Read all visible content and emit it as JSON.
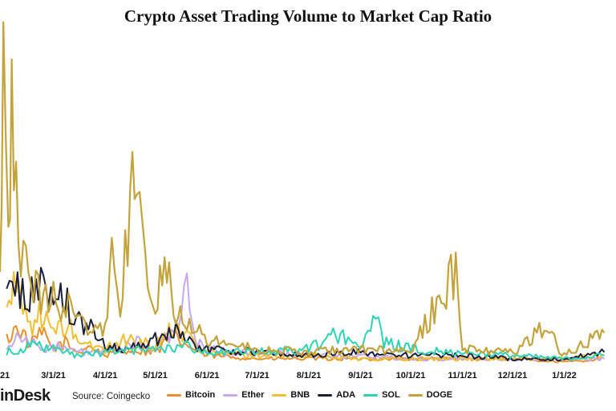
{
  "title": "Crypto Asset Trading Volume to Market Cap Ratio",
  "footer": {
    "logo": "inDesk",
    "source": "Source: Coingecko"
  },
  "chart_data": {
    "type": "line",
    "title": "Crypto Asset Trading Volume to Market Cap Ratio",
    "xlabel": "",
    "ylabel": "",
    "x_ticks": [
      "21",
      "3/1/21",
      "4/1/21",
      "5/1/21",
      "6/1/21",
      "7/1/21",
      "8/1/21",
      "9/1/21",
      "10/1/21",
      "11/1/21",
      "12/1/21",
      "1/1/22"
    ],
    "ylim": [
      0,
      1.0
    ],
    "grid": false,
    "legend_position": "bottom",
    "series": [
      {
        "name": "Bitcoin",
        "color": "#e8902a",
        "points": [
          [
            "2021-02-01",
            0.08
          ],
          [
            "2021-02-08",
            0.12
          ],
          [
            "2021-02-15",
            0.06
          ],
          [
            "2021-02-22",
            0.1
          ],
          [
            "2021-03-01",
            0.05
          ],
          [
            "2021-03-08",
            0.07
          ],
          [
            "2021-03-15",
            0.04
          ],
          [
            "2021-03-22",
            0.06
          ],
          [
            "2021-04-01",
            0.03
          ],
          [
            "2021-04-15",
            0.05
          ],
          [
            "2021-05-01",
            0.04
          ],
          [
            "2021-05-12",
            0.09
          ],
          [
            "2021-05-20",
            0.06
          ],
          [
            "2021-06-01",
            0.03
          ],
          [
            "2021-07-01",
            0.02
          ],
          [
            "2021-08-01",
            0.02
          ],
          [
            "2021-09-01",
            0.02
          ],
          [
            "2021-10-01",
            0.02
          ],
          [
            "2021-11-01",
            0.02
          ],
          [
            "2021-12-01",
            0.02
          ],
          [
            "2022-01-01",
            0.01
          ],
          [
            "2022-01-25",
            0.02
          ]
        ]
      },
      {
        "name": "Ether",
        "color": "#c5a8ef",
        "points": [
          [
            "2021-02-01",
            0.06
          ],
          [
            "2021-02-10",
            0.1
          ],
          [
            "2021-02-20",
            0.05
          ],
          [
            "2021-03-01",
            0.06
          ],
          [
            "2021-03-15",
            0.04
          ],
          [
            "2021-04-01",
            0.04
          ],
          [
            "2021-04-20",
            0.07
          ],
          [
            "2021-05-01",
            0.05
          ],
          [
            "2021-05-15",
            0.12
          ],
          [
            "2021-05-20",
            0.24
          ],
          [
            "2021-05-25",
            0.08
          ],
          [
            "2021-06-01",
            0.05
          ],
          [
            "2021-06-15",
            0.04
          ],
          [
            "2021-07-01",
            0.04
          ],
          [
            "2021-08-01",
            0.03
          ],
          [
            "2021-09-01",
            0.03
          ],
          [
            "2021-10-01",
            0.02
          ],
          [
            "2021-11-01",
            0.02
          ],
          [
            "2021-12-01",
            0.02
          ],
          [
            "2022-01-01",
            0.02
          ],
          [
            "2022-01-25",
            0.02
          ]
        ]
      },
      {
        "name": "BNB",
        "color": "#f0c030",
        "points": [
          [
            "2021-02-01",
            0.18
          ],
          [
            "2021-02-08",
            0.25
          ],
          [
            "2021-02-15",
            0.12
          ],
          [
            "2021-02-22",
            0.16
          ],
          [
            "2021-03-01",
            0.1
          ],
          [
            "2021-03-10",
            0.12
          ],
          [
            "2021-03-20",
            0.06
          ],
          [
            "2021-04-01",
            0.05
          ],
          [
            "2021-04-12",
            0.08
          ],
          [
            "2021-05-01",
            0.06
          ],
          [
            "2021-05-12",
            0.12
          ],
          [
            "2021-05-20",
            0.09
          ],
          [
            "2021-06-01",
            0.04
          ],
          [
            "2021-07-01",
            0.03
          ],
          [
            "2021-08-01",
            0.03
          ],
          [
            "2021-09-01",
            0.02
          ],
          [
            "2021-10-01",
            0.02
          ],
          [
            "2021-11-01",
            0.02
          ],
          [
            "2021-12-01",
            0.02
          ],
          [
            "2022-01-01",
            0.02
          ],
          [
            "2022-01-25",
            0.03
          ]
        ]
      },
      {
        "name": "ADA",
        "color": "#1c1f3a",
        "points": [
          [
            "2021-02-01",
            0.2
          ],
          [
            "2021-02-06",
            0.28
          ],
          [
            "2021-02-12",
            0.18
          ],
          [
            "2021-02-20",
            0.26
          ],
          [
            "2021-03-01",
            0.2
          ],
          [
            "2021-03-04",
            0.27
          ],
          [
            "2021-03-12",
            0.14
          ],
          [
            "2021-03-22",
            0.12
          ],
          [
            "2021-04-01",
            0.06
          ],
          [
            "2021-04-15",
            0.05
          ],
          [
            "2021-05-01",
            0.08
          ],
          [
            "2021-05-12",
            0.12
          ],
          [
            "2021-05-20",
            0.07
          ],
          [
            "2021-06-01",
            0.05
          ],
          [
            "2021-07-01",
            0.04
          ],
          [
            "2021-08-01",
            0.03
          ],
          [
            "2021-09-01",
            0.04
          ],
          [
            "2021-10-01",
            0.03
          ],
          [
            "2021-11-01",
            0.03
          ],
          [
            "2021-12-01",
            0.02
          ],
          [
            "2022-01-01",
            0.02
          ],
          [
            "2022-01-25",
            0.04
          ]
        ]
      },
      {
        "name": "SOL",
        "color": "#2ed3b4",
        "points": [
          [
            "2021-02-01",
            0.04
          ],
          [
            "2021-02-15",
            0.06
          ],
          [
            "2021-03-01",
            0.05
          ],
          [
            "2021-03-15",
            0.03
          ],
          [
            "2021-04-01",
            0.04
          ],
          [
            "2021-05-01",
            0.05
          ],
          [
            "2021-05-20",
            0.06
          ],
          [
            "2021-06-01",
            0.04
          ],
          [
            "2021-07-01",
            0.04
          ],
          [
            "2021-08-01",
            0.05
          ],
          [
            "2021-08-20",
            0.1
          ],
          [
            "2021-09-01",
            0.06
          ],
          [
            "2021-09-10",
            0.14
          ],
          [
            "2021-09-15",
            0.07
          ],
          [
            "2021-10-01",
            0.05
          ],
          [
            "2021-11-01",
            0.04
          ],
          [
            "2021-12-01",
            0.03
          ],
          [
            "2022-01-01",
            0.02
          ],
          [
            "2022-01-25",
            0.03
          ]
        ]
      },
      {
        "name": "DOGE",
        "color": "#c4a33d",
        "points": [
          [
            "2021-01-28",
            0.3
          ],
          [
            "2021-01-30",
            0.96
          ],
          [
            "2021-02-02",
            0.5
          ],
          [
            "2021-02-04",
            0.75
          ],
          [
            "2021-02-08",
            0.4
          ],
          [
            "2021-02-14",
            0.3
          ],
          [
            "2021-02-20",
            0.22
          ],
          [
            "2021-03-01",
            0.2
          ],
          [
            "2021-03-10",
            0.18
          ],
          [
            "2021-03-20",
            0.12
          ],
          [
            "2021-04-01",
            0.1
          ],
          [
            "2021-04-05",
            0.4
          ],
          [
            "2021-04-10",
            0.2
          ],
          [
            "2021-04-16",
            0.45
          ],
          [
            "2021-04-20",
            0.7
          ],
          [
            "2021-04-25",
            0.3
          ],
          [
            "2021-05-01",
            0.2
          ],
          [
            "2021-05-08",
            0.36
          ],
          [
            "2021-05-12",
            0.18
          ],
          [
            "2021-05-20",
            0.15
          ],
          [
            "2021-06-01",
            0.08
          ],
          [
            "2021-07-01",
            0.05
          ],
          [
            "2021-08-01",
            0.04
          ],
          [
            "2021-09-01",
            0.05
          ],
          [
            "2021-10-01",
            0.04
          ],
          [
            "2021-10-28",
            0.3
          ],
          [
            "2021-11-01",
            0.05
          ],
          [
            "2021-12-01",
            0.04
          ],
          [
            "2021-12-20",
            0.12
          ],
          [
            "2022-01-01",
            0.03
          ],
          [
            "2022-01-25",
            0.1
          ]
        ]
      }
    ]
  }
}
